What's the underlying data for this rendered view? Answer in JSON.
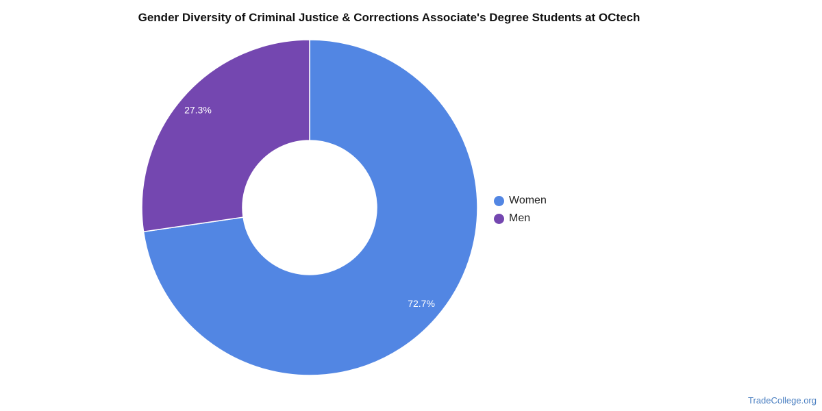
{
  "chart_data": {
    "type": "pie",
    "title": "Gender Diversity of Criminal Justice & Corrections Associate's Degree Students at OCtech",
    "categories": [
      "Women",
      "Men"
    ],
    "values": [
      72.7,
      27.3
    ],
    "value_labels": [
      "72.7%",
      "27.3%"
    ],
    "colors": [
      "#5286e3",
      "#7447b0"
    ],
    "donut": true,
    "legend_position": "right"
  },
  "watermark": "TradeCollege.org"
}
